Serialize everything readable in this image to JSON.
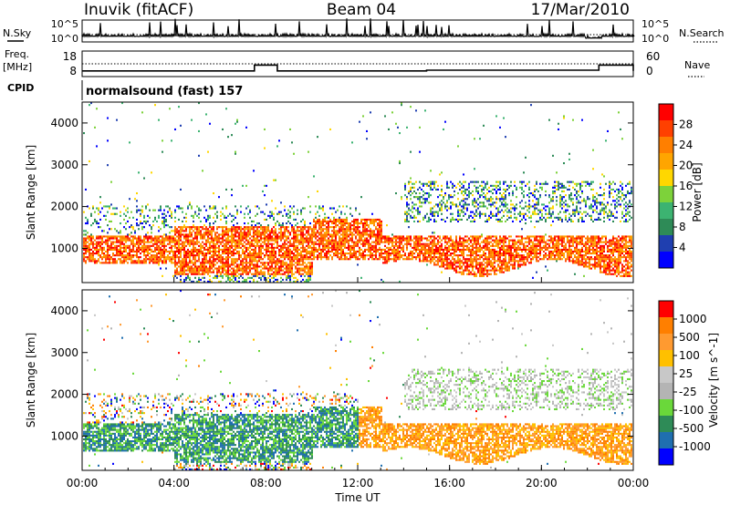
{
  "header": {
    "station": "Inuvik (fitACF)",
    "beam": "Beam 04",
    "date": "17/Mar/2010"
  },
  "side_labels": {
    "nsky": "N.Sky",
    "freq_top": "Freq.",
    "freq_bottom": "[MHz]",
    "cpid": "CPID",
    "nsearch": "N.Search",
    "nave": "Nave"
  },
  "cpid_text": "normalsound (fast) 157",
  "colors": {
    "power": [
      "#0000ff",
      "#1f3fb0",
      "#2e8b57",
      "#3cb371",
      "#7dd23a",
      "#ffd700",
      "#ffa500",
      "#ff7f00",
      "#ff4000",
      "#ff0000"
    ],
    "velocity": [
      "#ff0000",
      "#ff7f00",
      "#ff9a30",
      "#ffc000",
      "#c8c8c8",
      "#b4b4b4",
      "#6ad83a",
      "#2e8b57",
      "#1f6fb0",
      "#0000ff"
    ]
  },
  "chart_data": [
    {
      "type": "line",
      "panel": "noise",
      "series": [
        {
          "name": "N.Sky",
          "style": "solid"
        },
        {
          "name": "N.Search",
          "style": "dotted"
        }
      ],
      "y_ticks_left": [
        "10^5",
        "10^0"
      ],
      "y_ticks_right": [
        "10^5",
        "10^0"
      ],
      "ylim_log": [
        0,
        5
      ]
    },
    {
      "type": "line",
      "panel": "frequency",
      "series": [
        {
          "name": "Freq.",
          "style": "solid",
          "x": [
            "00:00",
            "06:30",
            "07:30",
            "08:30",
            "14:00",
            "15:00",
            "21:30",
            "22:30",
            "24:00"
          ],
          "values": [
            10.2,
            10.2,
            12.5,
            10.2,
            10.2,
            10.5,
            10.5,
            12.5,
            10.2
          ]
        },
        {
          "name": "Nave",
          "style": "dotted",
          "x": [
            "00:00",
            "24:00"
          ],
          "values": [
            30,
            30
          ]
        }
      ],
      "y_ticks_left": [
        "18",
        "8"
      ],
      "y_ticks_right": [
        "60",
        "0"
      ],
      "ylim_left": [
        8,
        18
      ],
      "ylim_right": [
        0,
        60
      ]
    },
    {
      "type": "heatmap",
      "panel": "power",
      "ylabel": "Slant Range [km]",
      "y_ticks": [
        "1000",
        "2000",
        "3000",
        "4000"
      ],
      "ylim": [
        180,
        4500
      ],
      "colorbar_label": "Power [dB]",
      "colorbar_ticks": [
        "4",
        "8",
        "12",
        "16",
        "20",
        "24",
        "28"
      ],
      "colorbar_range": [
        0,
        30
      ]
    },
    {
      "type": "heatmap",
      "panel": "velocity",
      "ylabel": "Slant Range [km]",
      "xlabel": "Time UT",
      "x_ticks": [
        "00:00",
        "04:00",
        "08:00",
        "12:00",
        "16:00",
        "20:00",
        "00:00"
      ],
      "y_ticks": [
        "1000",
        "2000",
        "3000",
        "4000"
      ],
      "ylim": [
        180,
        4500
      ],
      "colorbar_label": "Velocity [m s^-1]",
      "colorbar_ticks": [
        "1000",
        "500",
        "100",
        "25",
        "-25",
        "-100",
        "-500",
        "-1000"
      ]
    }
  ]
}
